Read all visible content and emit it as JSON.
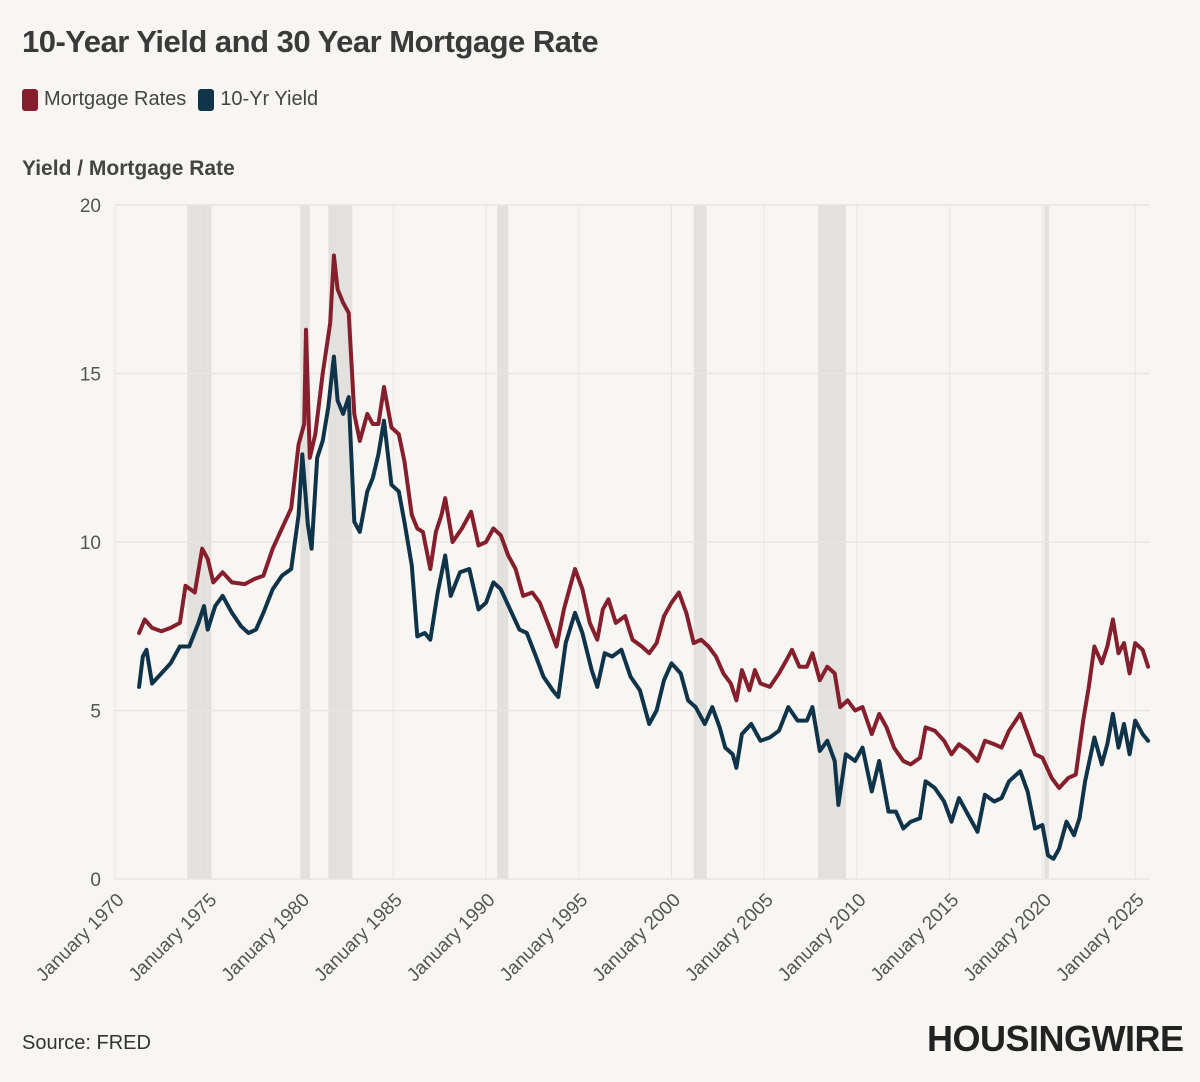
{
  "title": "10-Year Yield and 30 Year Mortgage Rate",
  "ylabel": "Yield / Mortgage Rate",
  "source": "Source: FRED",
  "brand": "HOUSINGWIRE",
  "colors": {
    "mortgage": "#861f2d",
    "yield": "#0f3348",
    "recession": "#e3e1dd",
    "grid": "#e8e6e2",
    "background": "#f8f6f2"
  },
  "chart_data": {
    "type": "line",
    "title": "10-Year Yield and 30 Year Mortgage Rate",
    "xlabel": "",
    "ylabel": "Yield / Mortgage Rate",
    "ylim": [
      0,
      20
    ],
    "xlim": [
      1970,
      2025.8
    ],
    "yticks": [
      0,
      5,
      10,
      15,
      20
    ],
    "xticks": [
      {
        "value": 1970,
        "label": "January 1970"
      },
      {
        "value": 1975,
        "label": "January 1975"
      },
      {
        "value": 1980,
        "label": "January 1980"
      },
      {
        "value": 1985,
        "label": "January 1985"
      },
      {
        "value": 1990,
        "label": "January 1990"
      },
      {
        "value": 1995,
        "label": "January 1995"
      },
      {
        "value": 2000,
        "label": "January 2000"
      },
      {
        "value": 2005,
        "label": "January 2005"
      },
      {
        "value": 2010,
        "label": "January 2010"
      },
      {
        "value": 2015,
        "label": "January 2015"
      },
      {
        "value": 2020,
        "label": "January 2020"
      },
      {
        "value": 2025,
        "label": "January 2025"
      }
    ],
    "grid": true,
    "legend_position": "top-left",
    "recessions": [
      [
        1973.9,
        1975.2
      ],
      [
        1980.0,
        1980.5
      ],
      [
        1981.5,
        1982.8
      ],
      [
        1990.6,
        1991.2
      ],
      [
        2001.2,
        2001.9
      ],
      [
        2007.9,
        2009.4
      ],
      [
        2020.1,
        2020.35
      ]
    ],
    "series": [
      {
        "name": "Mortgage Rates",
        "points": [
          [
            1971.3,
            7.3
          ],
          [
            1971.6,
            7.7
          ],
          [
            1972.0,
            7.45
          ],
          [
            1972.5,
            7.35
          ],
          [
            1973.0,
            7.45
          ],
          [
            1973.5,
            7.6
          ],
          [
            1973.8,
            8.7
          ],
          [
            1974.3,
            8.5
          ],
          [
            1974.7,
            9.8
          ],
          [
            1975.0,
            9.5
          ],
          [
            1975.3,
            8.8
          ],
          [
            1975.8,
            9.1
          ],
          [
            1976.3,
            8.8
          ],
          [
            1977.0,
            8.75
          ],
          [
            1977.5,
            8.9
          ],
          [
            1978.0,
            9.0
          ],
          [
            1978.5,
            9.8
          ],
          [
            1979.0,
            10.4
          ],
          [
            1979.5,
            11.0
          ],
          [
            1979.9,
            12.9
          ],
          [
            1980.2,
            13.5
          ],
          [
            1980.3,
            16.3
          ],
          [
            1980.5,
            12.5
          ],
          [
            1980.8,
            13.2
          ],
          [
            1981.2,
            15.0
          ],
          [
            1981.6,
            16.5
          ],
          [
            1981.8,
            18.5
          ],
          [
            1982.0,
            17.5
          ],
          [
            1982.3,
            17.1
          ],
          [
            1982.6,
            16.8
          ],
          [
            1982.9,
            13.8
          ],
          [
            1983.2,
            13.0
          ],
          [
            1983.6,
            13.8
          ],
          [
            1983.9,
            13.5
          ],
          [
            1984.2,
            13.5
          ],
          [
            1984.5,
            14.6
          ],
          [
            1984.9,
            13.4
          ],
          [
            1985.3,
            13.2
          ],
          [
            1985.6,
            12.4
          ],
          [
            1986.0,
            10.8
          ],
          [
            1986.3,
            10.4
          ],
          [
            1986.6,
            10.3
          ],
          [
            1987.0,
            9.2
          ],
          [
            1987.3,
            10.3
          ],
          [
            1987.6,
            10.8
          ],
          [
            1987.8,
            11.3
          ],
          [
            1988.2,
            10.0
          ],
          [
            1988.7,
            10.4
          ],
          [
            1989.2,
            10.9
          ],
          [
            1989.6,
            9.9
          ],
          [
            1990.0,
            10.0
          ],
          [
            1990.4,
            10.4
          ],
          [
            1990.8,
            10.2
          ],
          [
            1991.2,
            9.6
          ],
          [
            1991.6,
            9.2
          ],
          [
            1992.0,
            8.4
          ],
          [
            1992.5,
            8.5
          ],
          [
            1992.9,
            8.2
          ],
          [
            1993.4,
            7.5
          ],
          [
            1993.8,
            6.9
          ],
          [
            1994.2,
            8.0
          ],
          [
            1994.5,
            8.6
          ],
          [
            1994.8,
            9.2
          ],
          [
            1995.2,
            8.6
          ],
          [
            1995.6,
            7.6
          ],
          [
            1996.0,
            7.1
          ],
          [
            1996.3,
            8.0
          ],
          [
            1996.6,
            8.3
          ],
          [
            1997.0,
            7.6
          ],
          [
            1997.5,
            7.8
          ],
          [
            1997.9,
            7.1
          ],
          [
            1998.4,
            6.9
          ],
          [
            1998.8,
            6.7
          ],
          [
            1999.2,
            7.0
          ],
          [
            1999.6,
            7.8
          ],
          [
            2000.0,
            8.2
          ],
          [
            2000.4,
            8.5
          ],
          [
            2000.8,
            7.9
          ],
          [
            2001.2,
            7.0
          ],
          [
            2001.6,
            7.1
          ],
          [
            2002.0,
            6.9
          ],
          [
            2002.4,
            6.6
          ],
          [
            2002.8,
            6.1
          ],
          [
            2003.2,
            5.8
          ],
          [
            2003.5,
            5.3
          ],
          [
            2003.8,
            6.2
          ],
          [
            2004.2,
            5.6
          ],
          [
            2004.5,
            6.2
          ],
          [
            2004.8,
            5.8
          ],
          [
            2005.3,
            5.7
          ],
          [
            2005.8,
            6.1
          ],
          [
            2006.2,
            6.5
          ],
          [
            2006.5,
            6.8
          ],
          [
            2006.9,
            6.3
          ],
          [
            2007.3,
            6.3
          ],
          [
            2007.6,
            6.7
          ],
          [
            2008.0,
            5.9
          ],
          [
            2008.4,
            6.3
          ],
          [
            2008.8,
            6.1
          ],
          [
            2009.1,
            5.1
          ],
          [
            2009.5,
            5.3
          ],
          [
            2009.9,
            5.0
          ],
          [
            2010.3,
            5.1
          ],
          [
            2010.8,
            4.3
          ],
          [
            2011.2,
            4.9
          ],
          [
            2011.6,
            4.5
          ],
          [
            2012.0,
            3.9
          ],
          [
            2012.5,
            3.5
          ],
          [
            2012.9,
            3.4
          ],
          [
            2013.4,
            3.6
          ],
          [
            2013.7,
            4.5
          ],
          [
            2014.2,
            4.4
          ],
          [
            2014.7,
            4.1
          ],
          [
            2015.1,
            3.7
          ],
          [
            2015.5,
            4.0
          ],
          [
            2016.0,
            3.8
          ],
          [
            2016.5,
            3.5
          ],
          [
            2016.9,
            4.1
          ],
          [
            2017.4,
            4.0
          ],
          [
            2017.8,
            3.9
          ],
          [
            2018.2,
            4.4
          ],
          [
            2018.8,
            4.9
          ],
          [
            2019.2,
            4.3
          ],
          [
            2019.6,
            3.7
          ],
          [
            2020.0,
            3.6
          ],
          [
            2020.5,
            3.0
          ],
          [
            2020.9,
            2.7
          ],
          [
            2021.4,
            3.0
          ],
          [
            2021.8,
            3.1
          ],
          [
            2022.2,
            4.7
          ],
          [
            2022.5,
            5.7
          ],
          [
            2022.8,
            6.9
          ],
          [
            2023.2,
            6.4
          ],
          [
            2023.5,
            6.9
          ],
          [
            2023.8,
            7.7
          ],
          [
            2024.1,
            6.7
          ],
          [
            2024.4,
            7.0
          ],
          [
            2024.7,
            6.1
          ],
          [
            2025.0,
            7.0
          ],
          [
            2025.4,
            6.8
          ],
          [
            2025.7,
            6.3
          ]
        ]
      },
      {
        "name": "10-Yr Yield",
        "points": [
          [
            1971.3,
            5.7
          ],
          [
            1971.5,
            6.6
          ],
          [
            1971.7,
            6.8
          ],
          [
            1972.0,
            5.8
          ],
          [
            1972.5,
            6.1
          ],
          [
            1973.0,
            6.4
          ],
          [
            1973.5,
            6.9
          ],
          [
            1974.0,
            6.9
          ],
          [
            1974.5,
            7.6
          ],
          [
            1974.8,
            8.1
          ],
          [
            1975.0,
            7.4
          ],
          [
            1975.4,
            8.1
          ],
          [
            1975.8,
            8.4
          ],
          [
            1976.3,
            7.9
          ],
          [
            1976.8,
            7.5
          ],
          [
            1977.2,
            7.3
          ],
          [
            1977.6,
            7.4
          ],
          [
            1978.0,
            7.9
          ],
          [
            1978.5,
            8.6
          ],
          [
            1979.0,
            9.0
          ],
          [
            1979.5,
            9.2
          ],
          [
            1979.9,
            10.8
          ],
          [
            1980.1,
            12.6
          ],
          [
            1980.4,
            10.5
          ],
          [
            1980.6,
            9.8
          ],
          [
            1980.9,
            12.5
          ],
          [
            1981.2,
            13.0
          ],
          [
            1981.5,
            14.0
          ],
          [
            1981.8,
            15.5
          ],
          [
            1982.0,
            14.2
          ],
          [
            1982.3,
            13.8
          ],
          [
            1982.6,
            14.3
          ],
          [
            1982.9,
            10.6
          ],
          [
            1983.2,
            10.3
          ],
          [
            1983.6,
            11.5
          ],
          [
            1983.9,
            11.9
          ],
          [
            1984.2,
            12.6
          ],
          [
            1984.5,
            13.6
          ],
          [
            1984.9,
            11.7
          ],
          [
            1985.3,
            11.5
          ],
          [
            1985.6,
            10.6
          ],
          [
            1986.0,
            9.3
          ],
          [
            1986.3,
            7.2
          ],
          [
            1986.7,
            7.3
          ],
          [
            1987.0,
            7.1
          ],
          [
            1987.4,
            8.5
          ],
          [
            1987.8,
            9.6
          ],
          [
            1988.1,
            8.4
          ],
          [
            1988.6,
            9.1
          ],
          [
            1989.1,
            9.2
          ],
          [
            1989.6,
            8.0
          ],
          [
            1990.0,
            8.2
          ],
          [
            1990.4,
            8.8
          ],
          [
            1990.8,
            8.6
          ],
          [
            1991.3,
            8.0
          ],
          [
            1991.8,
            7.4
          ],
          [
            1992.2,
            7.3
          ],
          [
            1992.7,
            6.6
          ],
          [
            1993.1,
            6.0
          ],
          [
            1993.6,
            5.6
          ],
          [
            1993.9,
            5.4
          ],
          [
            1994.3,
            7.0
          ],
          [
            1994.8,
            7.9
          ],
          [
            1995.2,
            7.3
          ],
          [
            1995.7,
            6.2
          ],
          [
            1996.0,
            5.7
          ],
          [
            1996.4,
            6.7
          ],
          [
            1996.8,
            6.6
          ],
          [
            1997.3,
            6.8
          ],
          [
            1997.8,
            6.0
          ],
          [
            1998.3,
            5.6
          ],
          [
            1998.8,
            4.6
          ],
          [
            1999.2,
            5.0
          ],
          [
            1999.6,
            5.9
          ],
          [
            2000.0,
            6.4
          ],
          [
            2000.5,
            6.1
          ],
          [
            2000.9,
            5.3
          ],
          [
            2001.3,
            5.1
          ],
          [
            2001.8,
            4.6
          ],
          [
            2002.2,
            5.1
          ],
          [
            2002.6,
            4.5
          ],
          [
            2002.9,
            3.9
          ],
          [
            2003.3,
            3.7
          ],
          [
            2003.5,
            3.3
          ],
          [
            2003.8,
            4.3
          ],
          [
            2004.3,
            4.6
          ],
          [
            2004.8,
            4.1
          ],
          [
            2005.3,
            4.2
          ],
          [
            2005.8,
            4.4
          ],
          [
            2006.3,
            5.1
          ],
          [
            2006.8,
            4.7
          ],
          [
            2007.3,
            4.7
          ],
          [
            2007.6,
            5.1
          ],
          [
            2008.0,
            3.8
          ],
          [
            2008.4,
            4.1
          ],
          [
            2008.8,
            3.5
          ],
          [
            2009.0,
            2.2
          ],
          [
            2009.4,
            3.7
          ],
          [
            2009.9,
            3.5
          ],
          [
            2010.3,
            3.9
          ],
          [
            2010.8,
            2.6
          ],
          [
            2011.2,
            3.5
          ],
          [
            2011.7,
            2.0
          ],
          [
            2012.1,
            2.0
          ],
          [
            2012.5,
            1.5
          ],
          [
            2012.9,
            1.7
          ],
          [
            2013.4,
            1.8
          ],
          [
            2013.7,
            2.9
          ],
          [
            2014.2,
            2.7
          ],
          [
            2014.7,
            2.3
          ],
          [
            2015.1,
            1.7
          ],
          [
            2015.5,
            2.4
          ],
          [
            2016.0,
            1.9
          ],
          [
            2016.5,
            1.4
          ],
          [
            2016.9,
            2.5
          ],
          [
            2017.4,
            2.3
          ],
          [
            2017.8,
            2.4
          ],
          [
            2018.2,
            2.9
          ],
          [
            2018.8,
            3.2
          ],
          [
            2019.2,
            2.6
          ],
          [
            2019.6,
            1.5
          ],
          [
            2020.0,
            1.6
          ],
          [
            2020.3,
            0.7
          ],
          [
            2020.6,
            0.6
          ],
          [
            2020.9,
            0.9
          ],
          [
            2021.3,
            1.7
          ],
          [
            2021.7,
            1.3
          ],
          [
            2022.0,
            1.8
          ],
          [
            2022.3,
            2.9
          ],
          [
            2022.8,
            4.2
          ],
          [
            2023.2,
            3.4
          ],
          [
            2023.5,
            4.0
          ],
          [
            2023.8,
            4.9
          ],
          [
            2024.1,
            3.9
          ],
          [
            2024.4,
            4.6
          ],
          [
            2024.7,
            3.7
          ],
          [
            2025.0,
            4.7
          ],
          [
            2025.4,
            4.3
          ],
          [
            2025.7,
            4.1
          ]
        ]
      }
    ]
  }
}
